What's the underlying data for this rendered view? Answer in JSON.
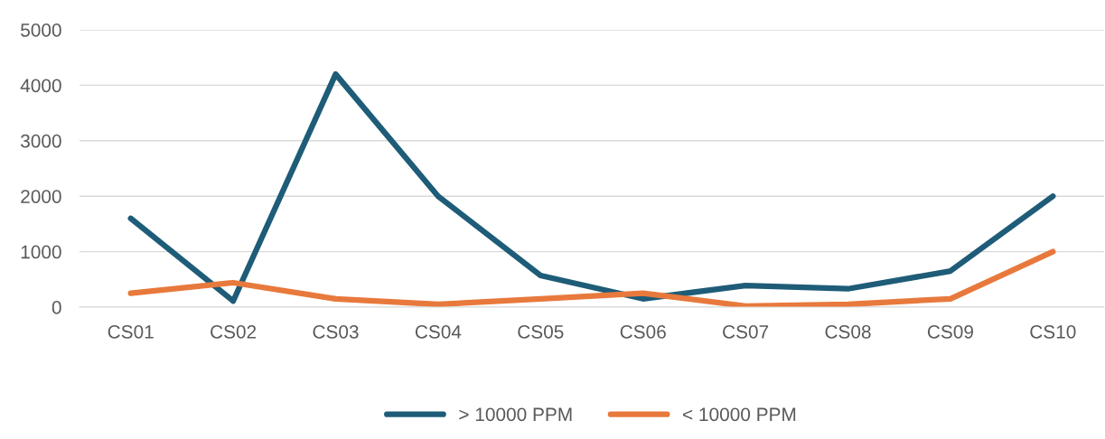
{
  "chart_data": {
    "type": "line",
    "categories": [
      "CS01",
      "CS02",
      "CS03",
      "CS04",
      "CS05",
      "CS06",
      "CS07",
      "CS08",
      "CS09",
      "CS10"
    ],
    "series": [
      {
        "name": "> 10000 PPM",
        "color": "#1e5c78",
        "values": [
          1600,
          110,
          4200,
          2000,
          570,
          150,
          390,
          330,
          650,
          2000
        ]
      },
      {
        "name": "< 10000 PPM",
        "color": "#e8793c",
        "values": [
          250,
          440,
          150,
          50,
          150,
          250,
          20,
          50,
          150,
          1000
        ]
      }
    ],
    "ylim": [
      0,
      5000
    ],
    "yticks": [
      0,
      1000,
      2000,
      3000,
      4000,
      5000
    ],
    "grid": "y",
    "legend": "bottom",
    "marker": "none",
    "line_style": "solid"
  }
}
